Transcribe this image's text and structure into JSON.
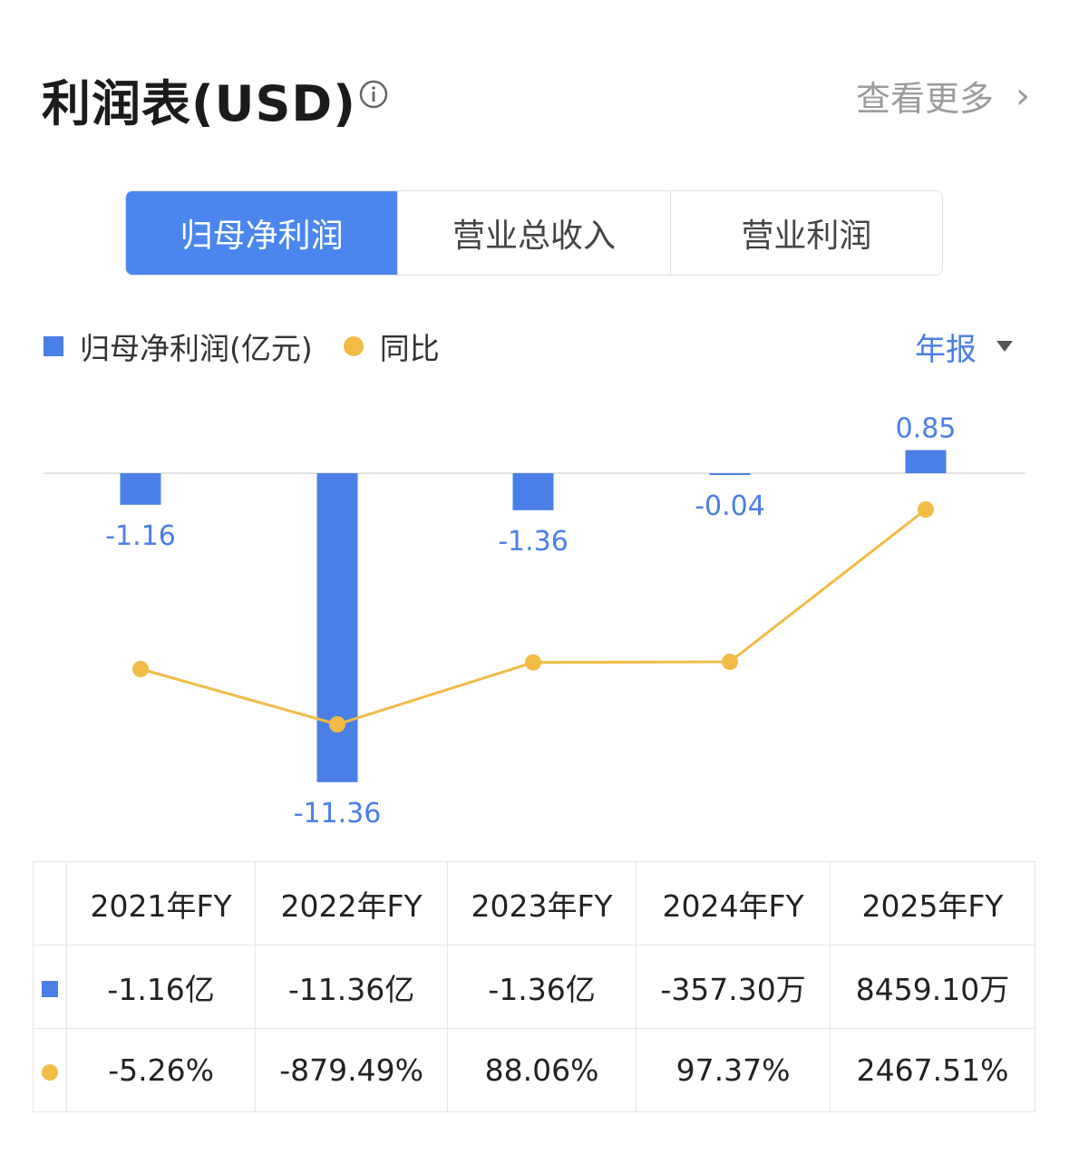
{
  "header": {
    "title": "利润表(USD)",
    "more_label": "查看更多",
    "chevron": "›"
  },
  "tabs": [
    "归母净利润",
    "营业总收入",
    "营业利润"
  ],
  "legend": {
    "bar_label": "归母净利润(亿元)",
    "line_label": "同比"
  },
  "period": {
    "label": "年报"
  },
  "colors": {
    "bar": "#4a7fe8",
    "line": "#f2bb46",
    "positive": "#e05555",
    "negative": "#3fae72",
    "tab_active": "#4a86ee"
  },
  "chart_data": {
    "type": "bar",
    "categories": [
      "2021年FY",
      "2022年FY",
      "2023年FY",
      "2024年FY",
      "2025年FY"
    ],
    "series": [
      {
        "name": "归母净利润(亿元)",
        "type": "bar",
        "values": [
          -1.16,
          -11.36,
          -1.36,
          -0.04,
          0.85
        ],
        "labels": [
          "-1.16",
          "-11.36",
          "-1.36",
          "-0.04",
          "0.85"
        ]
      },
      {
        "name": "同比",
        "type": "line",
        "values": [
          -5.26,
          -879.49,
          88.06,
          97.37,
          2467.51
        ]
      }
    ]
  },
  "table": {
    "headers": [
      "2021年FY",
      "2022年FY",
      "2023年FY",
      "2024年FY",
      "2025年FY"
    ],
    "profit_values": [
      "-1.16亿",
      "-11.36亿",
      "-1.36亿",
      "-357.30万",
      "8459.10万"
    ],
    "yoy_values": [
      "-5.26%",
      "-879.49%",
      "88.06%",
      "97.37%",
      "2467.51%"
    ],
    "yoy_sign": [
      "neg",
      "neg",
      "pos",
      "pos",
      "pos"
    ]
  }
}
